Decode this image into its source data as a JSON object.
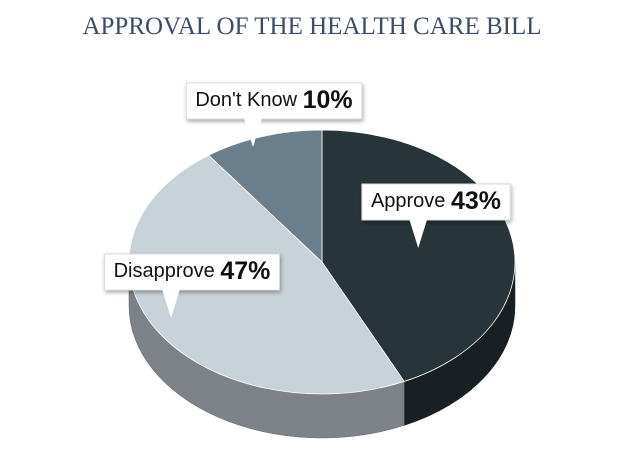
{
  "chart_data": {
    "type": "pie",
    "title": "APPROVAL OF THE HEALTH CARE BILL",
    "categories": [
      "Approve",
      "Disapprove",
      "Don't Know"
    ],
    "values": [
      43,
      47,
      10
    ],
    "value_labels": [
      "43%",
      "47%",
      "10%"
    ],
    "colors": [
      "#27343a",
      "#c8d2d9",
      "#6a7e8b"
    ]
  }
}
